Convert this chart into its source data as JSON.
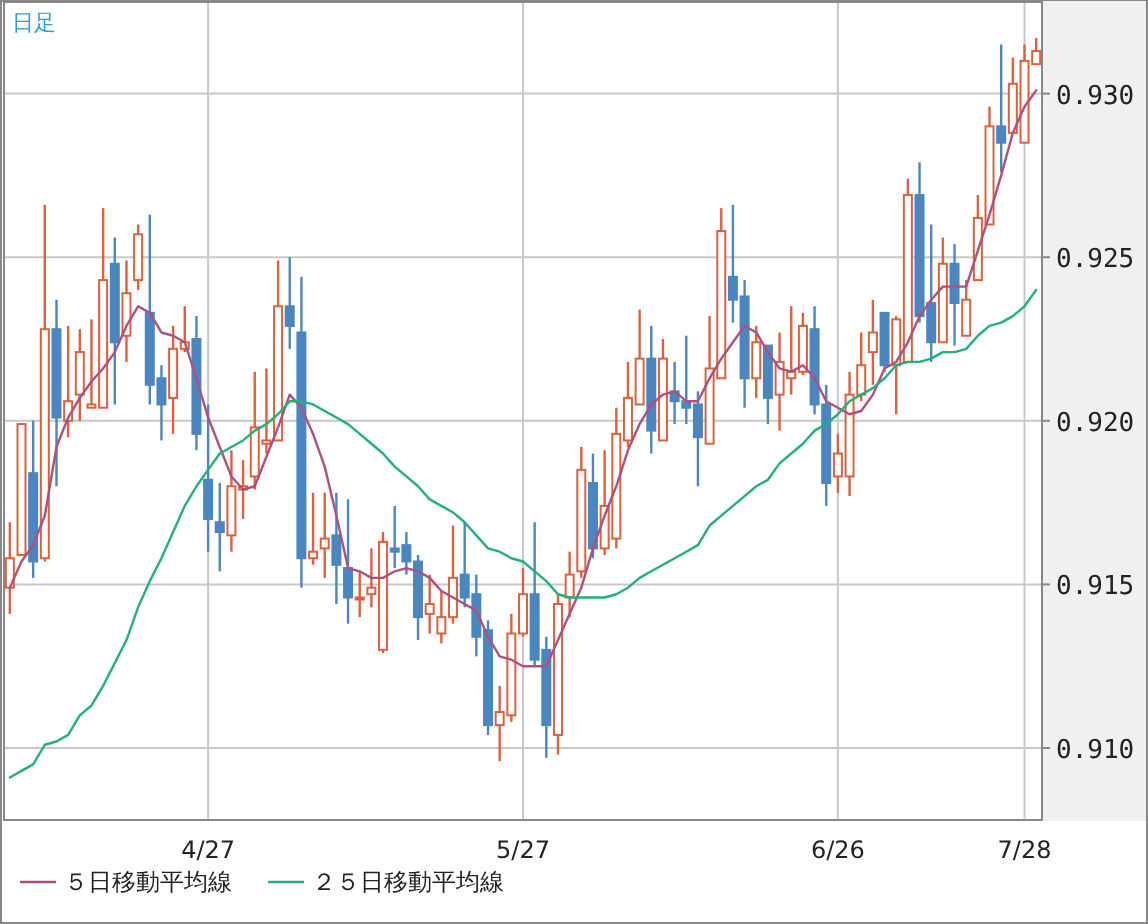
{
  "chart_data": {
    "type": "candlestick",
    "title": "日足",
    "categories": [
      null,
      null,
      null,
      null,
      null,
      null,
      null,
      null,
      null,
      null,
      null,
      null,
      null,
      null,
      null,
      null,
      null,
      "4/27",
      null,
      null,
      null,
      null,
      null,
      null,
      null,
      null,
      null,
      null,
      null,
      null,
      null,
      null,
      null,
      null,
      null,
      null,
      null,
      null,
      null,
      null,
      null,
      null,
      null,
      null,
      "5/27",
      null,
      null,
      null,
      null,
      null,
      null,
      null,
      null,
      null,
      null,
      null,
      null,
      null,
      null,
      null,
      null,
      null,
      null,
      null,
      null,
      null,
      null,
      null,
      null,
      null,
      null,
      "6/26",
      null,
      null,
      null,
      null,
      null,
      null,
      null,
      null,
      null,
      null,
      null,
      null,
      null,
      null,
      null,
      "7/28",
      null
    ],
    "ohlc": [
      [
        0.9149,
        0.9169,
        0.9141,
        0.9158
      ],
      [
        0.9159,
        0.9199,
        0.9159,
        0.9199
      ],
      [
        0.9184,
        0.92,
        0.9152,
        0.9157
      ],
      [
        0.9158,
        0.9266,
        0.9157,
        0.9228
      ],
      [
        0.9228,
        0.9237,
        0.918,
        0.9201
      ],
      [
        0.92,
        0.9229,
        0.9195,
        0.9206
      ],
      [
        0.9208,
        0.9228,
        0.92,
        0.9221
      ],
      [
        0.9204,
        0.9231,
        0.9204,
        0.9205
      ],
      [
        0.9204,
        0.9265,
        0.9204,
        0.9243
      ],
      [
        0.9248,
        0.9256,
        0.9205,
        0.9224
      ],
      [
        0.9226,
        0.9249,
        0.9218,
        0.9239
      ],
      [
        0.9243,
        0.926,
        0.924,
        0.9257
      ],
      [
        0.9233,
        0.9263,
        0.9205,
        0.9211
      ],
      [
        0.9213,
        0.9217,
        0.9194,
        0.9205
      ],
      [
        0.9207,
        0.9229,
        0.9196,
        0.9222
      ],
      [
        0.9222,
        0.9235,
        0.9221,
        0.9224
      ],
      [
        0.9225,
        0.9232,
        0.9191,
        0.9196
      ],
      [
        0.9182,
        0.9205,
        0.916,
        0.917
      ],
      [
        0.9169,
        0.9181,
        0.9154,
        0.9166
      ],
      [
        0.9165,
        0.9191,
        0.916,
        0.918
      ],
      [
        0.9179,
        0.9188,
        0.917,
        0.918
      ],
      [
        0.9183,
        0.9215,
        0.9179,
        0.9198
      ],
      [
        0.9193,
        0.9216,
        0.919,
        0.9194
      ],
      [
        0.9194,
        0.9249,
        0.9194,
        0.9235
      ],
      [
        0.9235,
        0.925,
        0.9222,
        0.9229
      ],
      [
        0.9227,
        0.9244,
        0.9149,
        0.9158
      ],
      [
        0.9158,
        0.9178,
        0.9156,
        0.916
      ],
      [
        0.9161,
        0.9178,
        0.9152,
        0.9164
      ],
      [
        0.9165,
        0.9178,
        0.9144,
        0.9156
      ],
      [
        0.9155,
        0.9176,
        0.9138,
        0.9146
      ],
      [
        0.9146,
        0.9154,
        0.914,
        0.9146
      ],
      [
        0.9147,
        0.9161,
        0.9143,
        0.9149
      ],
      [
        0.913,
        0.9166,
        0.9129,
        0.9163
      ],
      [
        0.9161,
        0.9174,
        0.9155,
        0.916
      ],
      [
        0.9162,
        0.9166,
        0.9153,
        0.9157
      ],
      [
        0.9157,
        0.9159,
        0.9133,
        0.914
      ],
      [
        0.9141,
        0.9153,
        0.9135,
        0.9144
      ],
      [
        0.9135,
        0.9148,
        0.9132,
        0.914
      ],
      [
        0.914,
        0.9168,
        0.9138,
        0.9152
      ],
      [
        0.9153,
        0.9169,
        0.9143,
        0.9146
      ],
      [
        0.9147,
        0.9153,
        0.9128,
        0.9134
      ],
      [
        0.9136,
        0.9139,
        0.9104,
        0.9107
      ],
      [
        0.9107,
        0.9119,
        0.9096,
        0.9111
      ],
      [
        0.911,
        0.9141,
        0.9108,
        0.9135
      ],
      [
        0.9135,
        0.9155,
        0.9134,
        0.9147
      ],
      [
        0.9147,
        0.9169,
        0.9125,
        0.9127
      ],
      [
        0.913,
        0.9134,
        0.9097,
        0.9107
      ],
      [
        0.9104,
        0.9147,
        0.9098,
        0.9144
      ],
      [
        0.9146,
        0.916,
        0.914,
        0.9153
      ],
      [
        0.9154,
        0.9192,
        0.9152,
        0.9185
      ],
      [
        0.9181,
        0.919,
        0.9158,
        0.9161
      ],
      [
        0.9161,
        0.9191,
        0.9159,
        0.9174
      ],
      [
        0.9164,
        0.9204,
        0.9161,
        0.9196
      ],
      [
        0.9194,
        0.9218,
        0.9192,
        0.9207
      ],
      [
        0.9205,
        0.9234,
        0.9205,
        0.9219
      ],
      [
        0.9219,
        0.9229,
        0.919,
        0.9197
      ],
      [
        0.9194,
        0.9225,
        0.9194,
        0.9219
      ],
      [
        0.9209,
        0.9218,
        0.9199,
        0.9206
      ],
      [
        0.9206,
        0.9226,
        0.9199,
        0.9204
      ],
      [
        0.9205,
        0.9209,
        0.918,
        0.9195
      ],
      [
        0.9193,
        0.9232,
        0.9193,
        0.9216
      ],
      [
        0.9213,
        0.9265,
        0.9213,
        0.9258
      ],
      [
        0.9244,
        0.9266,
        0.923,
        0.9237
      ],
      [
        0.9238,
        0.9243,
        0.9204,
        0.9213
      ],
      [
        0.9213,
        0.9229,
        0.9207,
        0.9224
      ],
      [
        0.9223,
        0.9223,
        0.9199,
        0.9207
      ],
      [
        0.9208,
        0.9227,
        0.9197,
        0.9218
      ],
      [
        0.9213,
        0.9235,
        0.9208,
        0.9215
      ],
      [
        0.9215,
        0.9233,
        0.9214,
        0.9229
      ],
      [
        0.9228,
        0.9235,
        0.9202,
        0.9205
      ],
      [
        0.9205,
        0.9211,
        0.9174,
        0.9181
      ],
      [
        0.9183,
        0.9196,
        0.9178,
        0.919
      ],
      [
        0.9183,
        0.9215,
        0.9177,
        0.9208
      ],
      [
        0.9208,
        0.9227,
        0.9206,
        0.9217
      ],
      [
        0.9221,
        0.9237,
        0.9211,
        0.9227
      ],
      [
        0.9233,
        0.9233,
        0.9215,
        0.9217
      ],
      [
        0.9217,
        0.9232,
        0.9202,
        0.9231
      ],
      [
        0.9218,
        0.9274,
        0.9218,
        0.9269
      ],
      [
        0.9269,
        0.9279,
        0.923,
        0.9232
      ],
      [
        0.9236,
        0.926,
        0.9218,
        0.9224
      ],
      [
        0.9224,
        0.9256,
        0.9224,
        0.9248
      ],
      [
        0.9248,
        0.9254,
        0.9223,
        0.9236
      ],
      [
        0.9226,
        0.9243,
        0.9226,
        0.9237
      ],
      [
        0.9243,
        0.9269,
        0.9243,
        0.9262
      ],
      [
        0.926,
        0.9296,
        0.926,
        0.929
      ],
      [
        0.929,
        0.9315,
        0.9276,
        0.9285
      ],
      [
        0.9288,
        0.9311,
        0.9288,
        0.9303
      ],
      [
        0.9285,
        0.9315,
        0.9285,
        0.931
      ],
      [
        0.9309,
        0.9317,
        0.9309,
        0.9313
      ]
    ],
    "series": [
      {
        "name": "５日移動平均線",
        "type": "line",
        "color": "#b0507e",
        "values": [
          0.9149,
          0.9157,
          0.9162,
          0.9171,
          0.9192,
          0.9201,
          0.9207,
          0.9212,
          0.9216,
          0.9221,
          0.9229,
          0.9235,
          0.9233,
          0.9227,
          0.9226,
          0.9224,
          0.9213,
          0.9201,
          0.9192,
          0.9183,
          0.9179,
          0.918,
          0.9189,
          0.9198,
          0.9208,
          0.9204,
          0.9196,
          0.9186,
          0.9171,
          0.9155,
          0.9154,
          0.9152,
          0.9152,
          0.9154,
          0.9155,
          0.9154,
          0.9152,
          0.9148,
          0.9146,
          0.9144,
          0.9142,
          0.9134,
          0.9128,
          0.9127,
          0.9125,
          0.9125,
          0.9125,
          0.9133,
          0.9141,
          0.9149,
          0.9161,
          0.9171,
          0.918,
          0.9191,
          0.9199,
          0.9205,
          0.9208,
          0.9209,
          0.9206,
          0.9206,
          0.9213,
          0.9219,
          0.9224,
          0.9229,
          0.9227,
          0.9221,
          0.9216,
          0.9215,
          0.9217,
          0.9213,
          0.9206,
          0.9204,
          0.9202,
          0.9203,
          0.9208,
          0.9216,
          0.9218,
          0.9224,
          0.9232,
          0.9237,
          0.9241,
          0.9241,
          0.9241,
          0.9252,
          0.9263,
          0.9275,
          0.9288,
          0.9296,
          0.9301
        ]
      },
      {
        "name": "２５日移動平均線",
        "type": "line",
        "color": "#22b07c",
        "values": [
          0.9091,
          0.9093,
          0.9095,
          0.9101,
          0.9102,
          0.9104,
          0.911,
          0.9113,
          0.9119,
          0.9126,
          0.9133,
          0.9143,
          0.9151,
          0.9158,
          0.9166,
          0.9174,
          0.918,
          0.9185,
          0.919,
          0.9192,
          0.9194,
          0.9197,
          0.9199,
          0.9202,
          0.9206,
          0.9206,
          0.9205,
          0.9203,
          0.9201,
          0.9199,
          0.9196,
          0.9193,
          0.919,
          0.9186,
          0.9183,
          0.918,
          0.9176,
          0.9174,
          0.9172,
          0.9169,
          0.9165,
          0.9161,
          0.916,
          0.9158,
          0.9157,
          0.9154,
          0.9151,
          0.9147,
          0.9146,
          0.9146,
          0.9146,
          0.9146,
          0.9147,
          0.9149,
          0.9152,
          0.9154,
          0.9156,
          0.9158,
          0.916,
          0.9162,
          0.9168,
          0.9171,
          0.9174,
          0.9177,
          0.918,
          0.9182,
          0.9187,
          0.919,
          0.9193,
          0.9197,
          0.9199,
          0.9202,
          0.9206,
          0.9208,
          0.921,
          0.9213,
          0.9217,
          0.9218,
          0.9218,
          0.9219,
          0.9221,
          0.9221,
          0.9222,
          0.9226,
          0.9229,
          0.923,
          0.9232,
          0.9235,
          0.924
        ]
      }
    ],
    "ylim": [
      0.9078,
      0.9328
    ],
    "yticks": [
      {
        "value": 0.91,
        "label": "0.910"
      },
      {
        "value": 0.915,
        "label": "0.915"
      },
      {
        "value": 0.92,
        "label": "0.920"
      },
      {
        "value": 0.925,
        "label": "0.925"
      },
      {
        "value": 0.93,
        "label": "0.930"
      }
    ],
    "grid": true,
    "legend": "bottom"
  }
}
